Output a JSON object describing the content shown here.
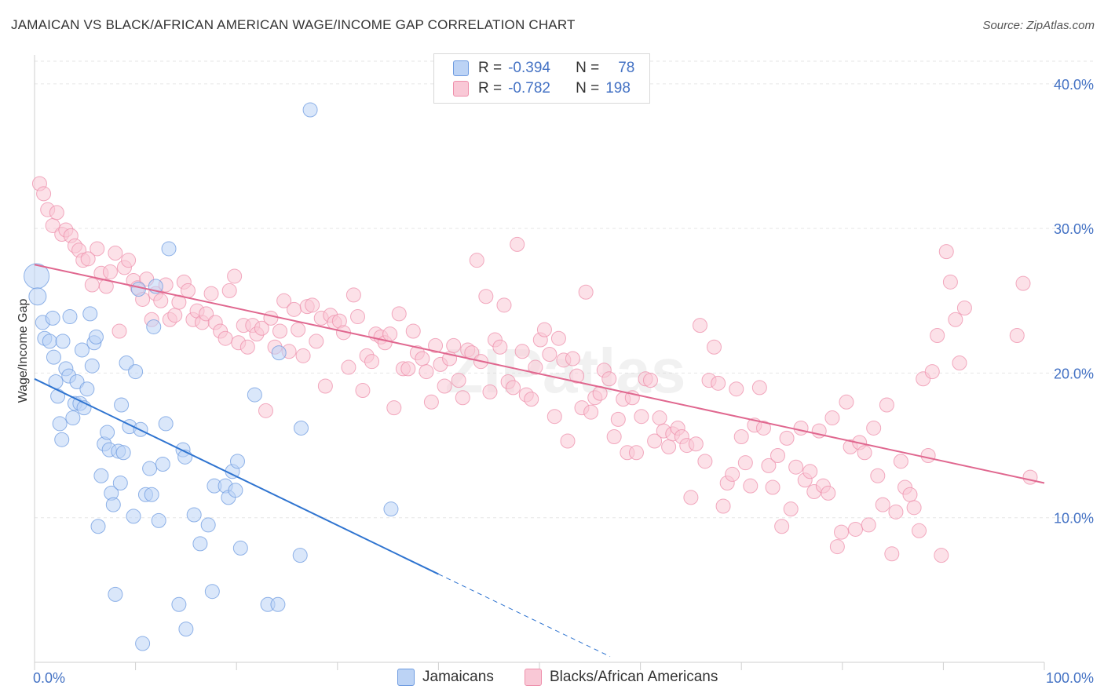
{
  "title": "JAMAICAN VS BLACK/AFRICAN AMERICAN WAGE/INCOME GAP CORRELATION CHART",
  "source": "Source: ZipAtlas.com",
  "watermark": "ZIPatlas",
  "legend": {
    "r_label": "R =",
    "n_label": "N =",
    "rows": [
      {
        "r": "-0.394",
        "n": "78",
        "color": "#6e9be0",
        "fill": "#bcd3f5"
      },
      {
        "r": "-0.782",
        "n": "198",
        "color": "#ee8fab",
        "fill": "#f9c8d6"
      }
    ]
  },
  "bottom_legend": [
    "Jamaicans",
    "Blacks/African Americans"
  ],
  "chart_data": {
    "type": "scatter",
    "xlabel": "",
    "ylabel": "Wage/Income Gap",
    "xlim": [
      0,
      100
    ],
    "ylim": [
      0,
      42
    ],
    "y_ticks": [
      10,
      20,
      30,
      40
    ],
    "y_tick_labels": [
      "10.0%",
      "20.0%",
      "30.0%",
      "40.0%"
    ],
    "x_tick_labels": [
      "0.0%",
      "100.0%"
    ],
    "grid": true,
    "series": [
      {
        "name": "Jamaicans",
        "color": "#6e9be0",
        "fill": "#bcd3f5",
        "trend": {
          "x0": 0,
          "y0": 19.6,
          "x1": 40,
          "y1": 6.1,
          "x_dash_end": 57,
          "y_dash_end": 0.4
        },
        "points": [
          [
            0.2,
            26.7
          ],
          [
            0.3,
            25.3
          ],
          [
            0.8,
            23.5
          ],
          [
            1.0,
            22.4
          ],
          [
            1.5,
            22.2
          ],
          [
            1.8,
            23.8
          ],
          [
            1.9,
            21.1
          ],
          [
            2.1,
            19.4
          ],
          [
            2.3,
            18.4
          ],
          [
            2.5,
            16.5
          ],
          [
            2.7,
            15.4
          ],
          [
            2.8,
            22.2
          ],
          [
            3.1,
            20.3
          ],
          [
            3.4,
            19.8
          ],
          [
            3.5,
            23.9
          ],
          [
            3.8,
            16.9
          ],
          [
            4.0,
            17.9
          ],
          [
            4.2,
            19.4
          ],
          [
            4.5,
            17.9
          ],
          [
            4.7,
            21.6
          ],
          [
            4.9,
            17.6
          ],
          [
            5.2,
            18.9
          ],
          [
            5.5,
            24.1
          ],
          [
            5.7,
            20.5
          ],
          [
            5.9,
            22.1
          ],
          [
            6.1,
            22.5
          ],
          [
            6.3,
            9.4
          ],
          [
            6.6,
            12.9
          ],
          [
            6.9,
            15.1
          ],
          [
            7.2,
            15.9
          ],
          [
            7.4,
            14.7
          ],
          [
            7.6,
            11.7
          ],
          [
            7.8,
            10.9
          ],
          [
            8.0,
            4.7
          ],
          [
            8.3,
            14.6
          ],
          [
            8.5,
            12.4
          ],
          [
            8.6,
            17.8
          ],
          [
            8.8,
            14.5
          ],
          [
            9.1,
            20.7
          ],
          [
            9.4,
            16.3
          ],
          [
            9.8,
            10.1
          ],
          [
            10.0,
            20.1
          ],
          [
            10.3,
            25.8
          ],
          [
            10.5,
            16.1
          ],
          [
            10.7,
            1.3
          ],
          [
            11.0,
            11.6
          ],
          [
            11.4,
            13.4
          ],
          [
            11.6,
            11.6
          ],
          [
            11.8,
            23.2
          ],
          [
            12.0,
            26.0
          ],
          [
            12.3,
            9.8
          ],
          [
            12.7,
            13.7
          ],
          [
            13.0,
            16.5
          ],
          [
            13.3,
            28.6
          ],
          [
            14.3,
            4.0
          ],
          [
            14.7,
            14.7
          ],
          [
            14.9,
            14.2
          ],
          [
            15.0,
            2.3
          ],
          [
            15.8,
            10.2
          ],
          [
            16.4,
            8.2
          ],
          [
            17.2,
            9.5
          ],
          [
            17.6,
            4.9
          ],
          [
            17.8,
            12.2
          ],
          [
            18.9,
            12.2
          ],
          [
            19.2,
            11.4
          ],
          [
            19.6,
            13.2
          ],
          [
            19.9,
            11.9
          ],
          [
            20.1,
            13.9
          ],
          [
            20.4,
            7.9
          ],
          [
            21.8,
            18.5
          ],
          [
            23.1,
            4.0
          ],
          [
            24.1,
            4.0
          ],
          [
            24.2,
            21.4
          ],
          [
            26.3,
            7.4
          ],
          [
            26.4,
            16.2
          ],
          [
            27.3,
            38.2
          ],
          [
            35.3,
            10.6
          ]
        ]
      },
      {
        "name": "Blacks/African Americans",
        "color": "#ee8fab",
        "fill": "#f9c8d6",
        "trend": {
          "x0": 0,
          "y0": 27.5,
          "x1": 100,
          "y1": 12.4
        },
        "points": [
          [
            0.5,
            33.1
          ],
          [
            0.9,
            32.4
          ],
          [
            1.3,
            31.3
          ],
          [
            1.8,
            30.2
          ],
          [
            2.2,
            31.1
          ],
          [
            2.7,
            29.6
          ],
          [
            3.1,
            29.9
          ],
          [
            3.6,
            29.5
          ],
          [
            4.0,
            28.8
          ],
          [
            4.4,
            28.5
          ],
          [
            4.8,
            27.8
          ],
          [
            5.3,
            27.9
          ],
          [
            5.7,
            26.1
          ],
          [
            6.2,
            28.6
          ],
          [
            6.6,
            26.9
          ],
          [
            7.1,
            26.0
          ],
          [
            7.5,
            27.0
          ],
          [
            8.0,
            28.3
          ],
          [
            8.4,
            22.9
          ],
          [
            8.9,
            27.3
          ],
          [
            9.3,
            27.8
          ],
          [
            9.8,
            26.4
          ],
          [
            10.2,
            25.9
          ],
          [
            10.7,
            25.1
          ],
          [
            11.1,
            26.5
          ],
          [
            11.6,
            23.7
          ],
          [
            12.0,
            25.5
          ],
          [
            12.5,
            25.0
          ],
          [
            13.0,
            26.1
          ],
          [
            13.4,
            23.7
          ],
          [
            13.9,
            24.0
          ],
          [
            14.3,
            24.9
          ],
          [
            14.8,
            26.3
          ],
          [
            15.2,
            25.7
          ],
          [
            15.7,
            23.7
          ],
          [
            16.1,
            24.3
          ],
          [
            16.6,
            23.5
          ],
          [
            17.0,
            24.1
          ],
          [
            17.5,
            25.5
          ],
          [
            17.9,
            23.5
          ],
          [
            18.4,
            22.9
          ],
          [
            18.9,
            22.4
          ],
          [
            19.3,
            25.7
          ],
          [
            19.8,
            26.7
          ],
          [
            20.2,
            22.1
          ],
          [
            20.7,
            23.3
          ],
          [
            21.1,
            21.8
          ],
          [
            21.6,
            23.3
          ],
          [
            22.0,
            22.7
          ],
          [
            22.5,
            23.1
          ],
          [
            22.9,
            17.4
          ],
          [
            23.4,
            23.8
          ],
          [
            23.8,
            21.8
          ],
          [
            24.3,
            22.9
          ],
          [
            24.7,
            25.0
          ],
          [
            25.2,
            21.5
          ],
          [
            25.7,
            24.4
          ],
          [
            26.1,
            23.0
          ],
          [
            26.6,
            21.2
          ],
          [
            27.0,
            24.6
          ],
          [
            27.5,
            24.7
          ],
          [
            27.9,
            22.2
          ],
          [
            28.4,
            23.8
          ],
          [
            28.8,
            19.1
          ],
          [
            29.3,
            24.0
          ],
          [
            29.7,
            23.5
          ],
          [
            30.2,
            23.6
          ],
          [
            30.6,
            22.8
          ],
          [
            31.1,
            20.4
          ],
          [
            31.6,
            25.4
          ],
          [
            32.0,
            23.9
          ],
          [
            32.5,
            18.8
          ],
          [
            32.9,
            21.2
          ],
          [
            33.4,
            20.8
          ],
          [
            33.8,
            22.7
          ],
          [
            34.3,
            22.5
          ],
          [
            34.7,
            22.1
          ],
          [
            35.2,
            22.7
          ],
          [
            35.6,
            17.6
          ],
          [
            36.1,
            24.1
          ],
          [
            36.5,
            20.3
          ],
          [
            37.0,
            20.3
          ],
          [
            37.5,
            22.9
          ],
          [
            37.9,
            21.4
          ],
          [
            38.4,
            21.0
          ],
          [
            38.8,
            20.1
          ],
          [
            39.3,
            18.0
          ],
          [
            39.7,
            21.9
          ],
          [
            40.2,
            20.6
          ],
          [
            40.6,
            19.1
          ],
          [
            41.1,
            21.0
          ],
          [
            41.5,
            21.9
          ],
          [
            42.0,
            19.5
          ],
          [
            42.4,
            18.3
          ],
          [
            42.9,
            21.6
          ],
          [
            43.3,
            21.4
          ],
          [
            43.8,
            27.8
          ],
          [
            44.2,
            20.8
          ],
          [
            44.7,
            25.3
          ],
          [
            45.1,
            18.7
          ],
          [
            45.6,
            22.3
          ],
          [
            46.1,
            21.8
          ],
          [
            46.5,
            24.7
          ],
          [
            46.9,
            19.4
          ],
          [
            47.4,
            19.0
          ],
          [
            47.8,
            28.9
          ],
          [
            48.3,
            21.5
          ],
          [
            48.7,
            18.5
          ],
          [
            49.2,
            18.2
          ],
          [
            49.6,
            20.4
          ],
          [
            50.1,
            22.3
          ],
          [
            50.5,
            23.0
          ],
          [
            51.0,
            21.3
          ],
          [
            51.5,
            17.0
          ],
          [
            51.9,
            22.4
          ],
          [
            52.4,
            20.9
          ],
          [
            52.8,
            15.3
          ],
          [
            53.3,
            21.0
          ],
          [
            53.7,
            19.8
          ],
          [
            54.2,
            17.6
          ],
          [
            54.6,
            25.6
          ],
          [
            55.1,
            17.3
          ],
          [
            55.5,
            18.3
          ],
          [
            56.0,
            18.6
          ],
          [
            56.4,
            20.2
          ],
          [
            56.9,
            19.6
          ],
          [
            57.4,
            15.6
          ],
          [
            57.8,
            16.8
          ],
          [
            58.3,
            18.2
          ],
          [
            58.7,
            14.5
          ],
          [
            59.2,
            18.3
          ],
          [
            59.6,
            14.5
          ],
          [
            60.1,
            17.0
          ],
          [
            60.5,
            19.6
          ],
          [
            61.0,
            19.5
          ],
          [
            61.4,
            15.3
          ],
          [
            61.9,
            16.9
          ],
          [
            62.3,
            16.0
          ],
          [
            62.8,
            14.9
          ],
          [
            63.2,
            15.8
          ],
          [
            63.7,
            16.2
          ],
          [
            64.1,
            15.6
          ],
          [
            64.6,
            15.0
          ],
          [
            65.0,
            11.4
          ],
          [
            65.5,
            15.1
          ],
          [
            65.9,
            23.3
          ],
          [
            66.4,
            13.9
          ],
          [
            66.8,
            19.5
          ],
          [
            67.3,
            21.8
          ],
          [
            67.7,
            19.3
          ],
          [
            68.2,
            10.8
          ],
          [
            68.6,
            12.4
          ],
          [
            69.1,
            13.0
          ],
          [
            69.5,
            18.9
          ],
          [
            70.0,
            15.6
          ],
          [
            70.4,
            13.8
          ],
          [
            70.9,
            12.2
          ],
          [
            71.3,
            16.4
          ],
          [
            71.8,
            19.0
          ],
          [
            72.2,
            16.2
          ],
          [
            72.7,
            13.6
          ],
          [
            73.1,
            12.1
          ],
          [
            73.6,
            14.3
          ],
          [
            74.0,
            9.4
          ],
          [
            74.5,
            15.5
          ],
          [
            74.9,
            10.6
          ],
          [
            75.4,
            13.5
          ],
          [
            75.9,
            16.2
          ],
          [
            76.3,
            12.6
          ],
          [
            76.8,
            13.2
          ],
          [
            77.2,
            11.8
          ],
          [
            77.7,
            16.0
          ],
          [
            78.1,
            12.2
          ],
          [
            78.6,
            11.7
          ],
          [
            79.0,
            16.9
          ],
          [
            79.5,
            8.0
          ],
          [
            79.9,
            9.0
          ],
          [
            80.4,
            18.0
          ],
          [
            80.8,
            14.9
          ],
          [
            81.3,
            9.2
          ],
          [
            81.7,
            15.2
          ],
          [
            82.2,
            14.5
          ],
          [
            82.6,
            9.5
          ],
          [
            83.1,
            16.2
          ],
          [
            83.5,
            12.9
          ],
          [
            84.0,
            10.9
          ],
          [
            84.4,
            17.8
          ],
          [
            84.9,
            7.5
          ],
          [
            85.3,
            10.4
          ],
          [
            85.8,
            13.9
          ],
          [
            86.2,
            12.1
          ],
          [
            86.7,
            11.6
          ],
          [
            87.1,
            10.7
          ],
          [
            87.6,
            9.1
          ],
          [
            88.0,
            19.6
          ],
          [
            88.5,
            14.3
          ],
          [
            88.9,
            20.1
          ],
          [
            89.4,
            22.6
          ],
          [
            89.8,
            7.4
          ],
          [
            90.3,
            28.4
          ],
          [
            90.7,
            26.3
          ],
          [
            91.2,
            23.7
          ],
          [
            91.6,
            20.7
          ],
          [
            92.1,
            24.5
          ],
          [
            97.3,
            22.6
          ],
          [
            97.9,
            26.2
          ],
          [
            98.6,
            12.8
          ]
        ]
      }
    ]
  }
}
